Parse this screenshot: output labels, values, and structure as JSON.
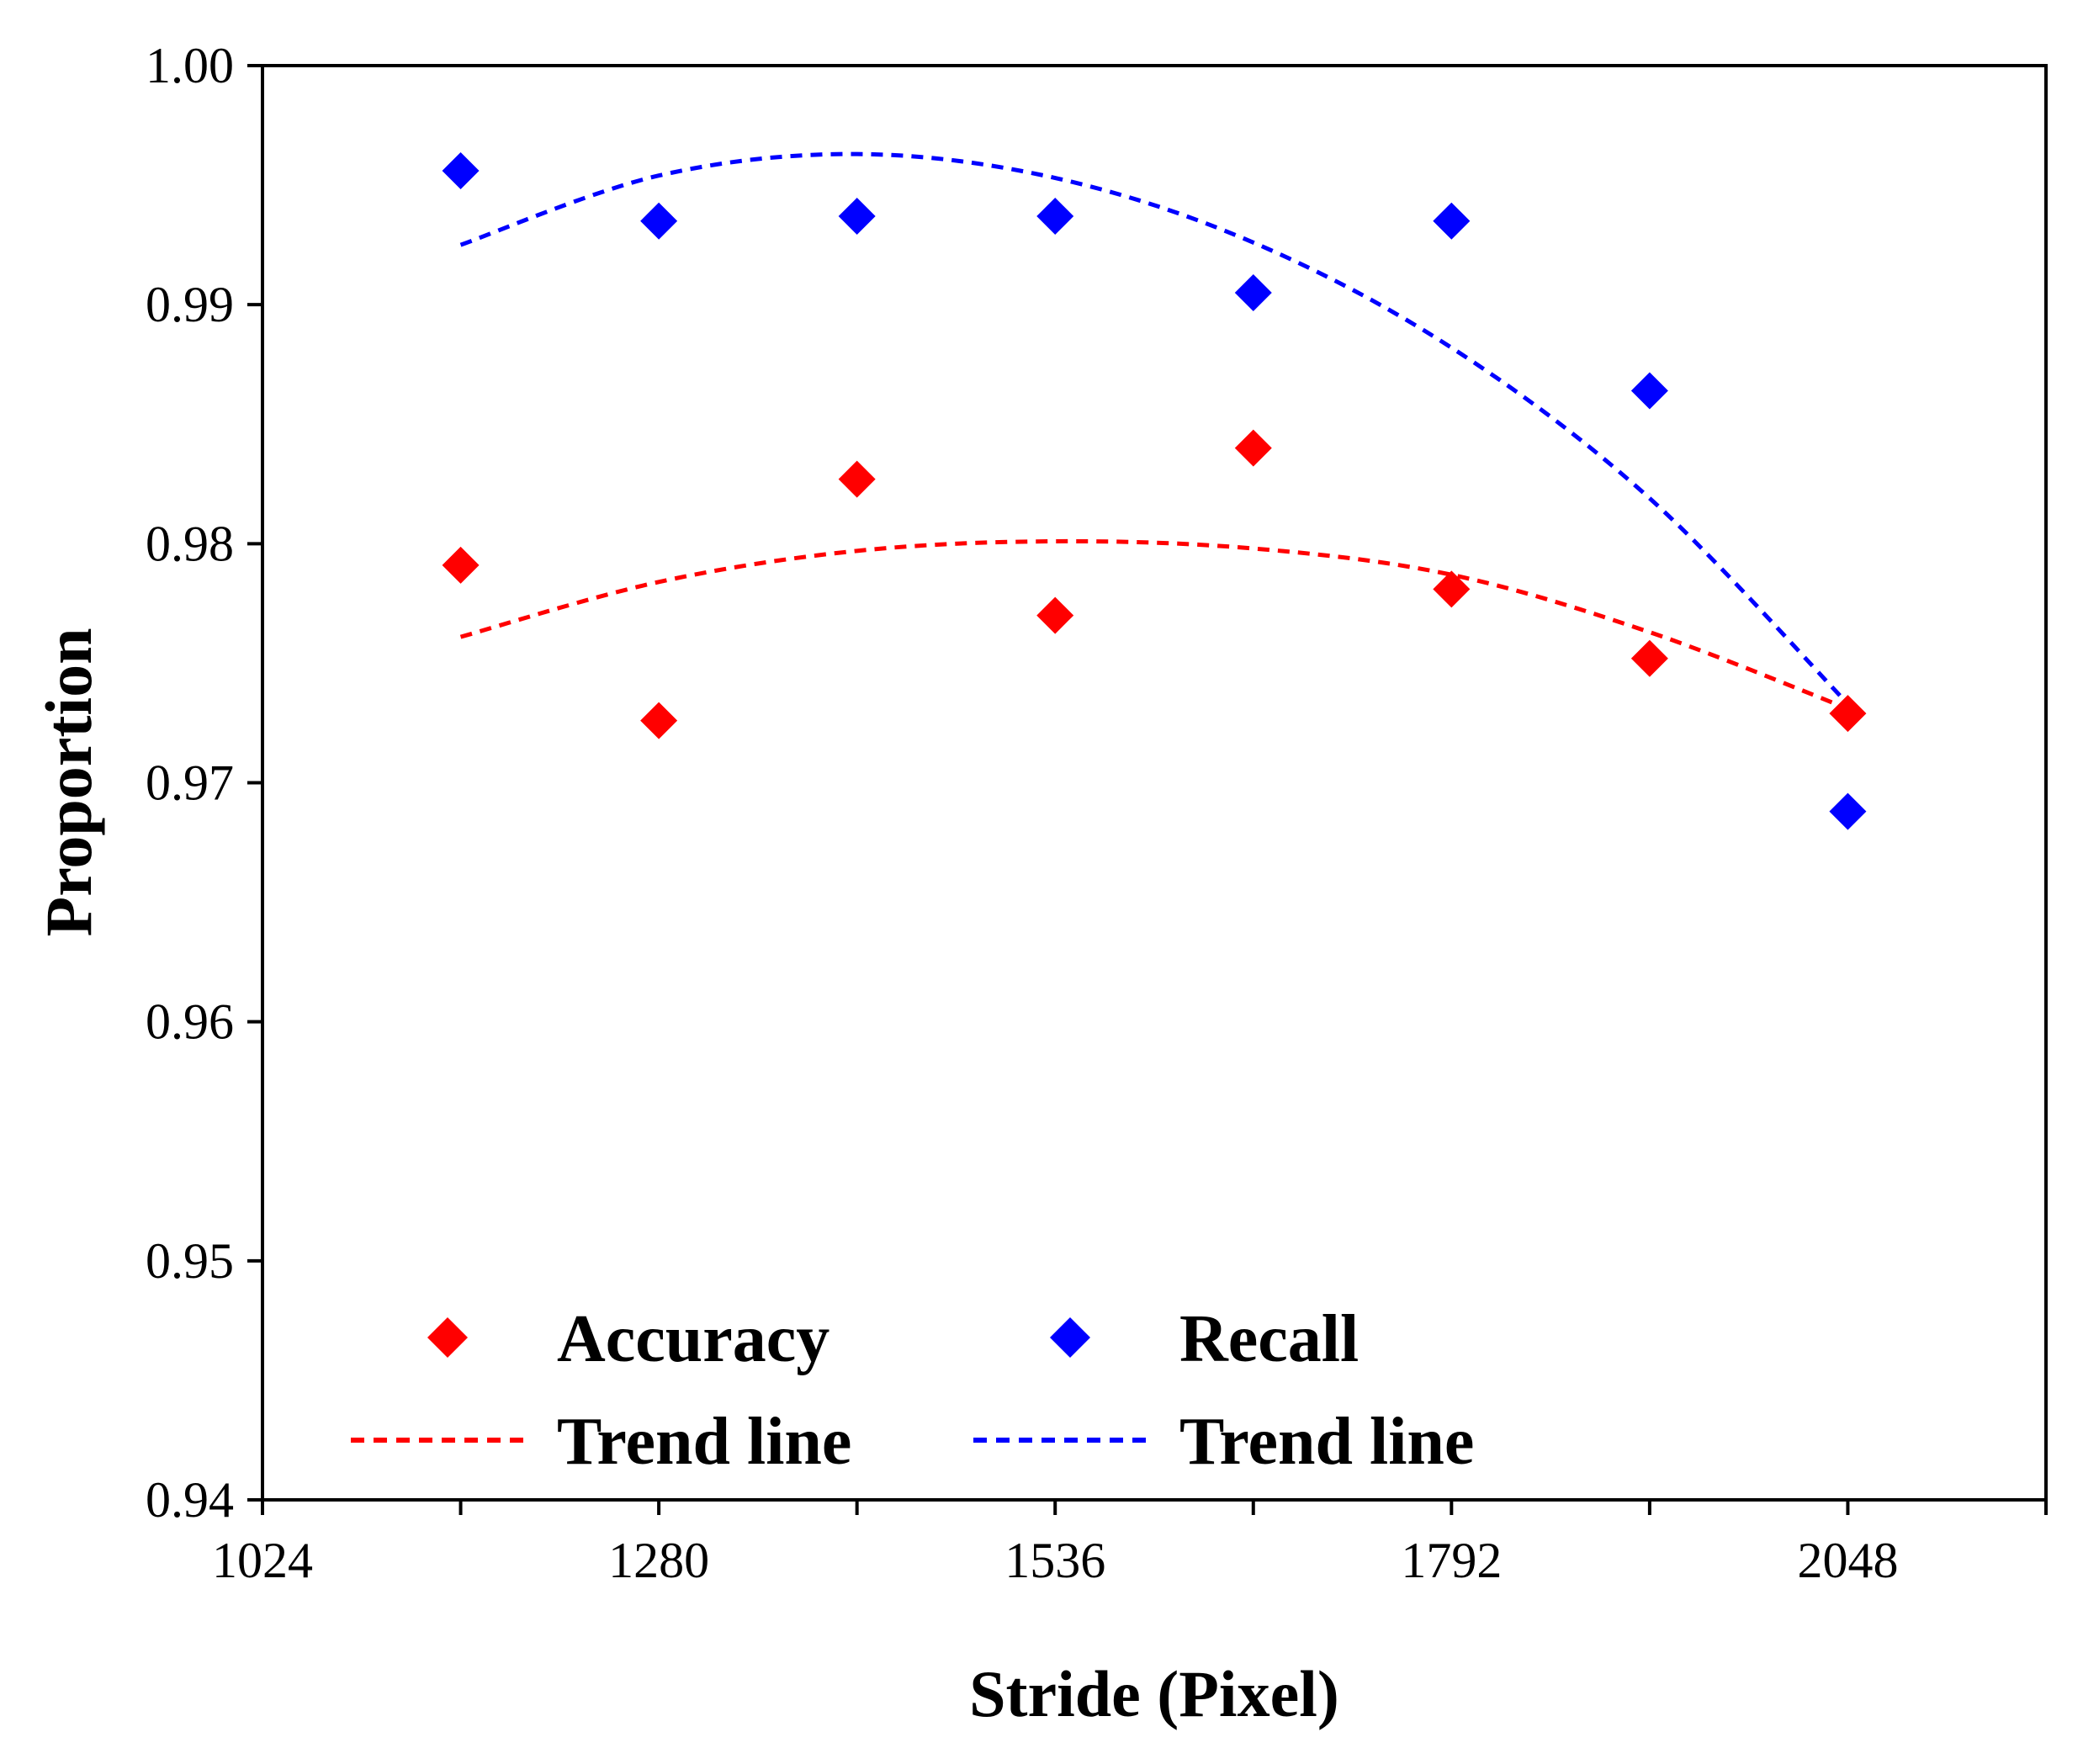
{
  "chart_data": {
    "type": "scatter",
    "xlabel": "Stride (Pixel)",
    "ylabel": "Proportion",
    "xlim": [
      1024,
      2176
    ],
    "ylim": [
      0.94,
      1.0
    ],
    "x_ticks": [
      1024,
      1280,
      1536,
      1792,
      2048
    ],
    "x_ticks_labels": [
      "1024",
      "1280",
      "1536",
      "1792",
      "2048"
    ],
    "x_minor_ticks": [
      1152,
      1408,
      1664,
      1920,
      2176
    ],
    "y_ticks": [
      0.94,
      0.95,
      0.96,
      0.97,
      0.98,
      0.99,
      1.0
    ],
    "y_ticks_labels": [
      "0.94",
      "0.95",
      "0.96",
      "0.97",
      "0.98",
      "0.99",
      "1.00"
    ],
    "x": [
      1152,
      1280,
      1408,
      1536,
      1664,
      1792,
      1920,
      2048
    ],
    "series": [
      {
        "name": "Accuracy",
        "color": "#ff0000",
        "marker": "diamond",
        "values": [
          0.9791,
          0.9726,
          0.9827,
          0.977,
          0.984,
          0.9781,
          0.9752,
          0.9729
        ],
        "trend": {
          "name": "Trend line",
          "x": [
            1152,
            1280,
            1408,
            1536,
            1664,
            1792,
            1920,
            2048
          ],
          "values": [
            0.9761,
            0.9784,
            0.9797,
            0.9801,
            0.9798,
            0.9787,
            0.9763,
            0.9731
          ]
        }
      },
      {
        "name": "Recall",
        "color": "#0000ff",
        "marker": "diamond",
        "values": [
          0.9956,
          0.9935,
          0.9937,
          0.9937,
          0.9905,
          0.9935,
          0.9864,
          0.9688
        ],
        "trend": {
          "name": "Trend line",
          "x": [
            1152,
            1280,
            1408,
            1536,
            1664,
            1792,
            1920,
            2048
          ],
          "values": [
            0.9925,
            0.9954,
            0.9963,
            0.9953,
            0.9926,
            0.9882,
            0.9819,
            0.9733
          ]
        }
      }
    ],
    "legend": {
      "location": "bottom-left",
      "items": [
        {
          "label": "Accuracy",
          "kind": "marker",
          "series": 0
        },
        {
          "label": "Recall",
          "kind": "marker",
          "series": 1
        },
        {
          "label": "Trend line",
          "kind": "line",
          "series": 0
        },
        {
          "label": "Trend line",
          "kind": "line",
          "series": 1
        }
      ]
    }
  }
}
